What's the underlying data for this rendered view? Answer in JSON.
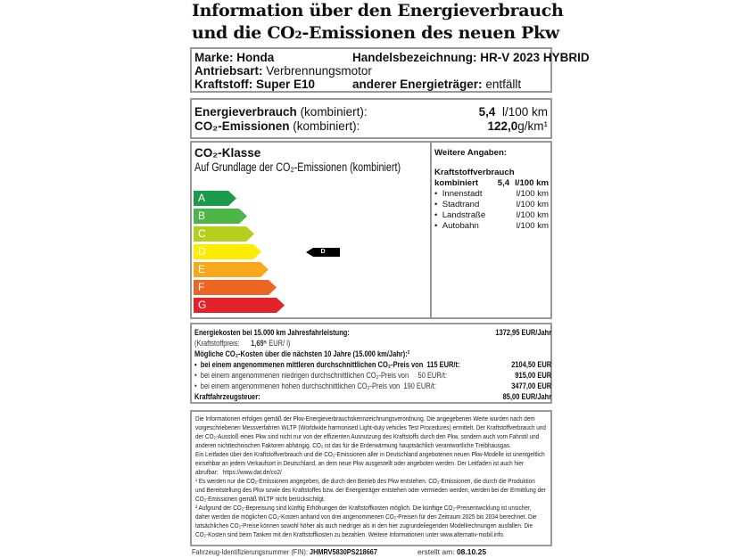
{
  "title": {
    "line1": "Information über den Energieverbrauch",
    "line2": "und die CO₂-Emissionen des neuen Pkw"
  },
  "vehicle": {
    "marke_label": "Marke:",
    "marke": "Honda",
    "handels_label": "Handelsbezeichnung:",
    "handels": "HR-V 2023 HYBRID",
    "antrieb_label": "Antriebsart:",
    "antrieb": "Verbrennungsmotor",
    "kraftstoff_label": "Kraftstoff:",
    "kraftstoff": "Super E10",
    "andere_label": "anderer Energieträger:",
    "andere": "entfällt"
  },
  "consumption": {
    "energie_label": "Energieverbrauch",
    "energie_suffix": "(kombiniert):",
    "energie_value": "5,4",
    "energie_unit": "l/100 km",
    "co2_label": "CO₂-Emissionen",
    "co2_suffix": "(kombiniert):",
    "co2_value": "122,0",
    "co2_unit": "g/km¹"
  },
  "co2_class": {
    "title": "CO₂-Klasse",
    "subtitle": "Auf Grundlage der CO₂-Emissionen (kombiniert)",
    "classes": [
      {
        "label": "A",
        "color": "#1a9a4a"
      },
      {
        "label": "B",
        "color": "#4cb648"
      },
      {
        "label": "C",
        "color": "#b5cf1d"
      },
      {
        "label": "D",
        "color": "#ffed00"
      },
      {
        "label": "E",
        "color": "#f7a81b"
      },
      {
        "label": "F",
        "color": "#ee6421"
      },
      {
        "label": "G",
        "color": "#e42229"
      }
    ],
    "current": "D"
  },
  "weitere": {
    "title": "Weitere Angaben:",
    "heading": "Kraftstoffverbrauch",
    "kombiniert_label": "kombiniert",
    "kombiniert_value": "5,4",
    "unit": "l/100 km",
    "items": [
      {
        "label": "Innenstadt",
        "unit": "l/100 km"
      },
      {
        "label": "Stadtrand",
        "unit": "l/100 km"
      },
      {
        "label": "Landstraße",
        "unit": "l/100 km"
      },
      {
        "label": "Autobahn",
        "unit": "l/100 km"
      }
    ]
  },
  "costs": {
    "energie_label": "Energiekosten bei 15.000 km Jahresfahrleistung:",
    "energie_value": "1372,95 EUR/Jahr",
    "preis_label": "(Kraftstoffpreis:",
    "preis_value": "1,69⁵",
    "preis_unit": "EUR/   l)",
    "co2_heading": "Mögliche CO₂-Kosten über die nächsten 10 Jahre (15.000 km/Jahr):²",
    "mittel_label": "bei einem angenommenen mittleren durchschnittlichen CO₂-Preis von",
    "mittel_price": "115  EUR/t:",
    "mittel_value": "2104,50 EUR",
    "niedrig_label": "bei einem angenommenen niedrigen durchschnittlichen CO₂-Preis von",
    "niedrig_price": "50  EUR/t:",
    "niedrig_value": "915,00 EUR",
    "hoch_label": "bei einem angenommenen hohen durchschnittlichen CO₂-Preis von",
    "hoch_price": "190  EUR/t:",
    "hoch_value": "3477,00 EUR",
    "steuer_label": "Kraftfahrzeugsteuer:",
    "steuer_value": "85,00 EUR/Jahr"
  },
  "info": {
    "p1": "Die Informationen erfolgen gemäß der Pkw-Energieverbrauchskennzeichnungsverordnung. Die angegebenen Werte wurden nach dem vorgeschriebenen Messverfahren WLTP (Worldwide harmonised Light-duty vehicles Test Procedures) ermittelt. Der Kraftstoffverbrauch und der CO₂-Ausstoß eines Pkw sind nicht nur von der effizienten Ausnutzung des Kraftstoffs durch den Pkw, sondern auch vom Fahrstil und anderen nichttechnischen Faktoren abhängig. CO₂ ist das für die Erderwärmung hauptsächlich verantwortliche Treibhausgas.",
    "p2": "Ein Leitfaden über den Kraftstoffverbrauch und die CO₂-Emissionen aller in Deutschland angebotenen neuen Pkw-Modelle ist unentgeltlich einsehbar an jedem Verkaufsort in Deutschland, an dem neue Pkw ausgestellt oder angeboten werden. Der Leitfaden ist auch hier abrufbar:",
    "link": "https://www.dat.de/co2/",
    "fn1": "¹ Es werden nur die CO₂-Emissionen angegeben, die durch den Betrieb des Pkw entstehen. CO₂-Emissionen, die durch die Produktion und Bereitstellung des Pkw sowie des Kraftstoffes bzw. der Energieträger entstehen oder vermieden werden, werden bei der Ermittlung der CO₂-Emissionen gemäß WLTP nicht berücksichtigt.",
    "fn2": "² Aufgrund der CO₂-Bepreisung sind künftig Erhöhungen der Kraftstoffkosten möglich. Die künftige CO₂-Preisentwicklung ist unsicher, daher werden die möglichen CO₂-Kosten anhand von drei angenommenen CO₂-Preisen für den Zeitraum  2025  bis  2034  berechnet. Die tatsächlichen CO₂-Preise können sowohl höher als auch niedriger als in den hier zugrundeliegenden Modellrechnungen ausfallen. Die CO₂-Kosten sind beim Tanken mit den Kraftstoffkosten zu bezahlen. Weitere Informationen unter www.alternativ-mobil.info."
  },
  "footer": {
    "fin_label": "Fahrzeug-Identifizierungsnummer (FIN):",
    "fin": "JHMRV5830PS218667",
    "date_label": "erstellt am:",
    "date": "08.10.25"
  }
}
